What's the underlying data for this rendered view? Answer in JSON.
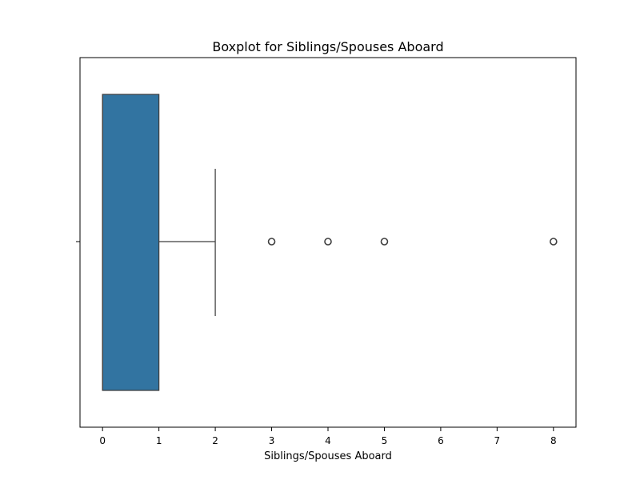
{
  "chart_data": {
    "type": "box",
    "orientation": "horizontal",
    "title": "Boxplot for Siblings/Spouses Aboard",
    "xlabel": "Siblings/Spouses Aboard",
    "ylabel": "",
    "xlim": [
      -0.4,
      8.4
    ],
    "xticks": [
      0,
      1,
      2,
      3,
      4,
      5,
      6,
      7,
      8
    ],
    "xtick_labels": [
      "0",
      "1",
      "2",
      "3",
      "4",
      "5",
      "6",
      "7",
      "8"
    ],
    "grid": false,
    "box": {
      "min": 0,
      "q1": 0,
      "median": 0,
      "q3": 1,
      "whisker_low": 0,
      "whisker_high": 2
    },
    "outliers": [
      3,
      4,
      5,
      8
    ],
    "colors": {
      "box_fill": "#3274a1",
      "line": "#3f3f3f",
      "outlier_edge": "#3f3f3f",
      "axis": "#000000"
    }
  }
}
